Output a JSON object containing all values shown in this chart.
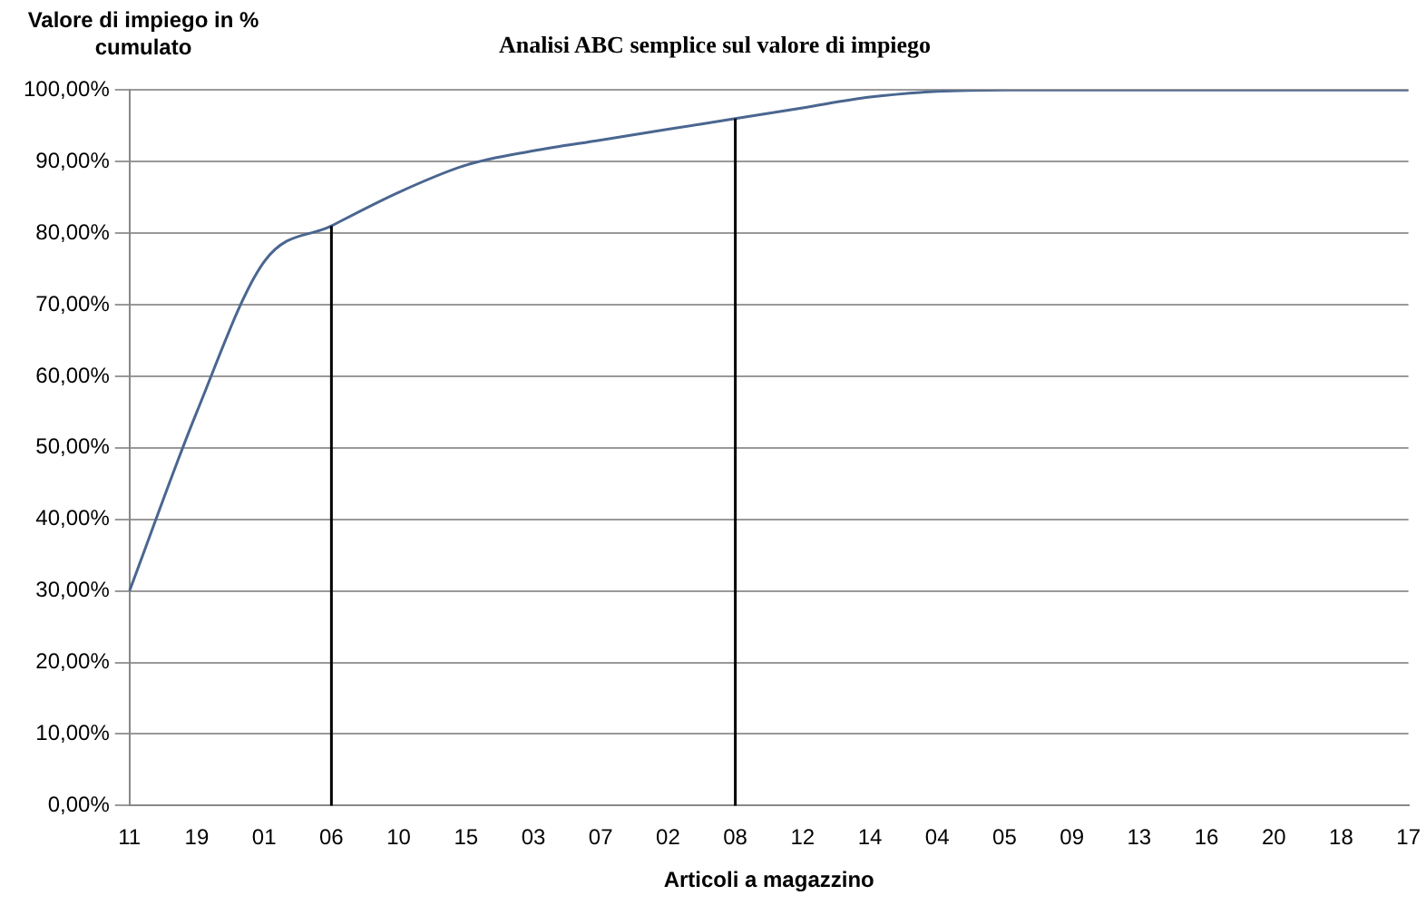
{
  "chart_data": {
    "type": "line",
    "title": "Analisi ABC semplice sul valore di impiego",
    "xlabel": "Articoli a magazzino",
    "ylabel": "Valore di impiego in % cumulato",
    "categories": [
      "11",
      "19",
      "01",
      "06",
      "10",
      "15",
      "03",
      "07",
      "02",
      "08",
      "12",
      "14",
      "04",
      "05",
      "09",
      "13",
      "16",
      "20",
      "18",
      "17"
    ],
    "series": [
      {
        "color": "#4a6690",
        "values": [
          30,
          55,
          76,
          81,
          85.7,
          89.5,
          91.5,
          93,
          94.5,
          96,
          97.5,
          99,
          99.8,
          100,
          100,
          100,
          100,
          100,
          100,
          100
        ]
      }
    ],
    "ylim": [
      0,
      100
    ],
    "yticks": [
      {
        "value": 0,
        "label": "0,00%"
      },
      {
        "value": 10,
        "label": "10,00%"
      },
      {
        "value": 20,
        "label": "20,00%"
      },
      {
        "value": 30,
        "label": "30,00%"
      },
      {
        "value": 40,
        "label": "40,00%"
      },
      {
        "value": 50,
        "label": "50,00%"
      },
      {
        "value": 60,
        "label": "60,00%"
      },
      {
        "value": 70,
        "label": "70,00%"
      },
      {
        "value": 80,
        "label": "80,00%"
      },
      {
        "value": 90,
        "label": "90,00%"
      },
      {
        "value": 100,
        "label": "100,00%"
      }
    ],
    "ref_lines": [
      {
        "axis": "x",
        "value": "06",
        "color": "#000000"
      },
      {
        "axis": "x",
        "value": "08",
        "color": "#000000"
      }
    ],
    "grid": "y",
    "legend": false,
    "marker": "none",
    "line_style": "solid"
  }
}
